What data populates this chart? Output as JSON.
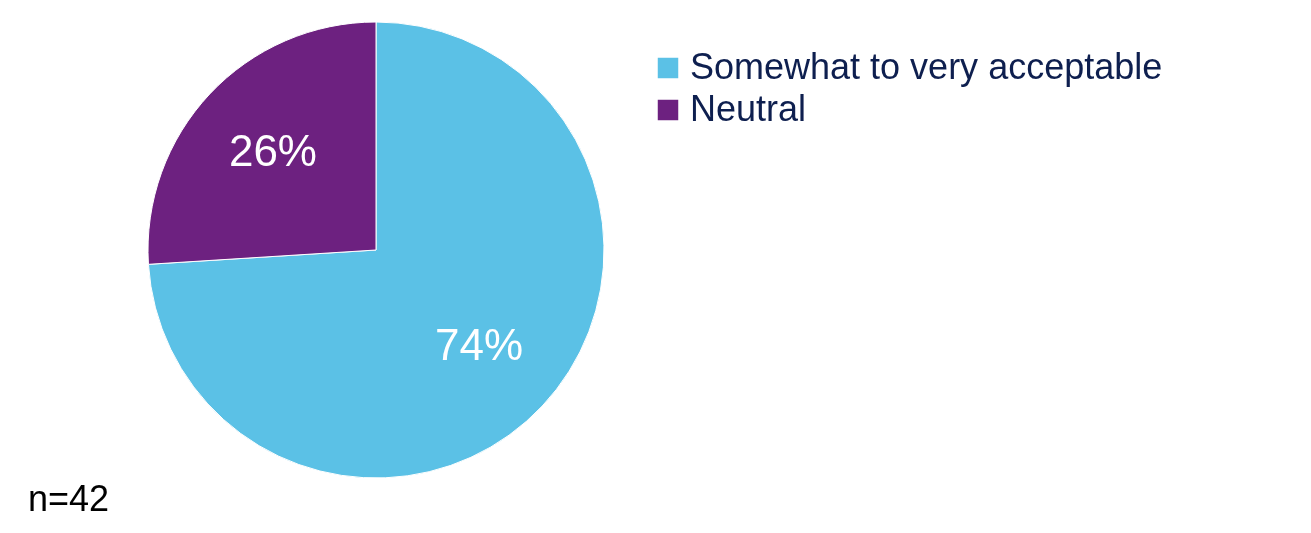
{
  "chart_data": {
    "type": "pie",
    "categories": [
      "Somewhat to very acceptable",
      "Neutral"
    ],
    "values": [
      74,
      26
    ],
    "colors": [
      "#5bc1e6",
      "#6d2180"
    ],
    "value_labels": [
      "74%",
      "26%"
    ],
    "legend": "right",
    "annotations": [
      "n=42"
    ]
  }
}
